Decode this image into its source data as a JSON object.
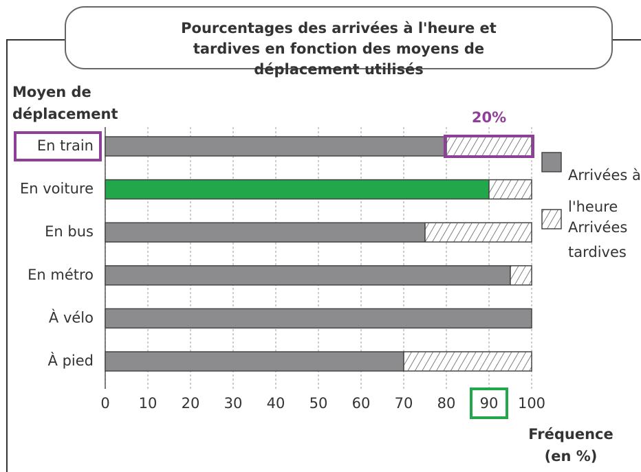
{
  "chart_data": {
    "type": "stacked-barh",
    "title": "Pourcentages des arrivées à l'heure et tardives en fonction des moyens de déplacement utilisés",
    "y_label": "Moyen de déplacement",
    "x_label": "Fréquence (en %)",
    "categories": [
      "En train",
      "En voiture",
      "En bus",
      "En métro",
      "À vélo",
      "À pied"
    ],
    "series": [
      {
        "name": "Arrivées à l'heure",
        "color": "#8c8c8e",
        "colors": [
          "#8c8c8e",
          "#22a84a",
          "#8c8c8e",
          "#8c8c8e",
          "#8c8c8e",
          "#8c8c8e"
        ],
        "values": [
          80,
          90,
          75,
          95,
          100,
          70
        ]
      },
      {
        "name": "Arrivées tardives",
        "color": "hatch",
        "values": [
          20,
          10,
          25,
          5,
          0,
          30
        ]
      }
    ],
    "xlim": [
      0,
      100
    ],
    "xticks": [
      0,
      10,
      20,
      30,
      40,
      50,
      60,
      70,
      80,
      90,
      100
    ],
    "grid": true,
    "legend": "right",
    "annotation": {
      "text": "20%",
      "color": "#8e3f98"
    },
    "highlight_color": "#22a84a"
  }
}
